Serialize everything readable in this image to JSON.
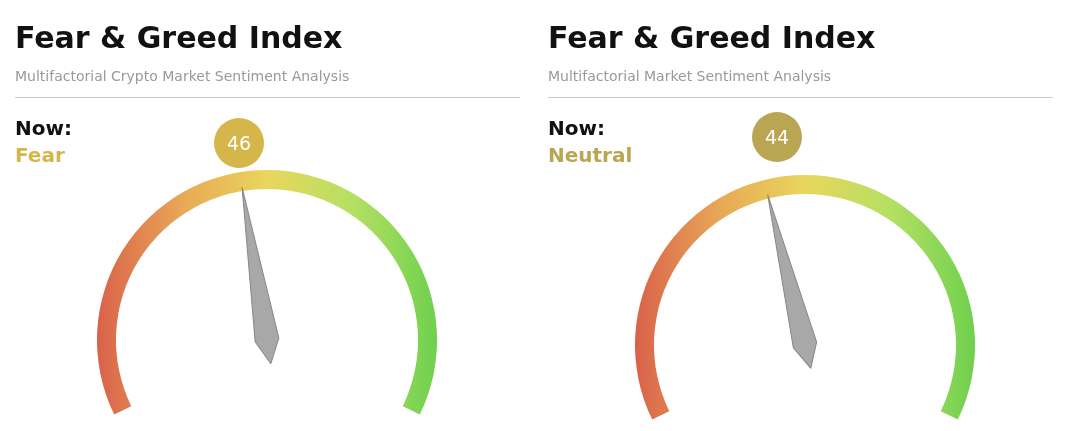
{
  "chart_data": [
    {
      "type": "other",
      "title": "Fear & Greed Index",
      "subtitle": "Multifactorial Crypto Market Sentiment Analysis",
      "annotations": [
        "Now:",
        "Fear"
      ],
      "values": [
        46
      ],
      "data_labels": true,
      "color": "#d4b64a"
    },
    {
      "type": "other",
      "title": "Fear & Greed Index",
      "subtitle": "Multifactorial Market Sentiment Analysis",
      "annotations": [
        "Now:",
        "Neutral"
      ],
      "values": [
        44
      ],
      "data_labels": true,
      "color": "#b9a552"
    }
  ]
}
